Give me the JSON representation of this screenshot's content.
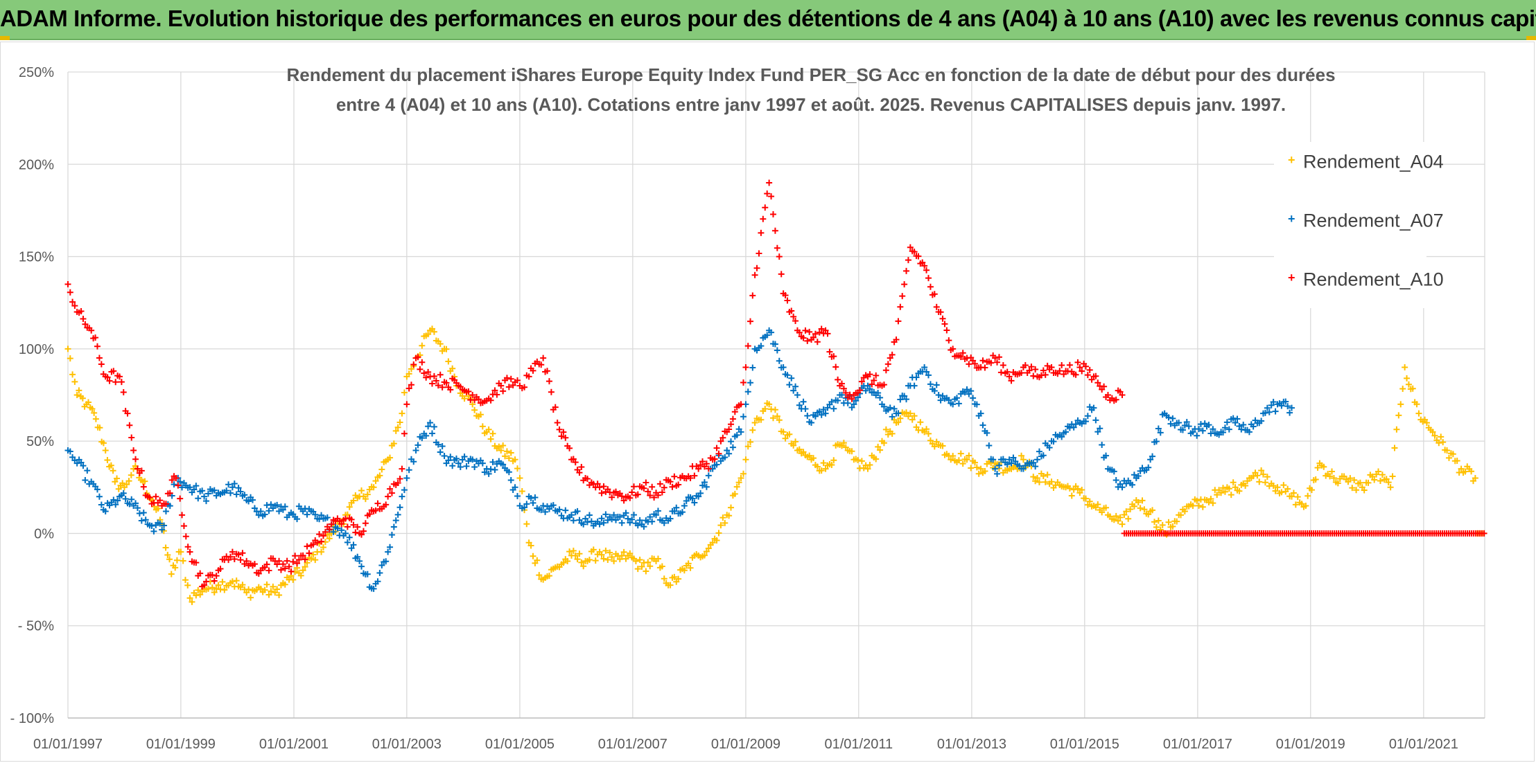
{
  "banner": {
    "title": "ADAM Informe. Evolution historique des performances en euros pour des détentions de 4 ans (A04) à 10 ans (A10) avec les revenus connus capitalisés"
  },
  "chart_data": {
    "type": "scatter",
    "title_lines": [
      "Rendement du placement iShares Europe Equity Index Fund PER_SG Acc en fonction de la date de début pour des durées",
      "entre 4 (A04) et 10 ans (A10). Cotations entre janv 1997 et août. 2025. Revenus CAPITALISES depuis janv. 1997."
    ],
    "xlabel": "",
    "ylabel": "",
    "x_range": [
      "1997-01-01",
      "2022-01-31"
    ],
    "ylim": [
      -100,
      250
    ],
    "y_ticks": [
      {
        "value": 250,
        "label": "250%"
      },
      {
        "value": 200,
        "label": "200%"
      },
      {
        "value": 150,
        "label": "150%"
      },
      {
        "value": 100,
        "label": "100%"
      },
      {
        "value": 50,
        "label": "50%"
      },
      {
        "value": 0,
        "label": "0%"
      },
      {
        "value": -50,
        "label": "- 50%"
      },
      {
        "value": -100,
        "label": "- 100%"
      }
    ],
    "x_ticks": [
      {
        "value": "1997-01-01",
        "label": "01/01/1997"
      },
      {
        "value": "1999-01-01",
        "label": "01/01/1999"
      },
      {
        "value": "2001-01-01",
        "label": "01/01/2001"
      },
      {
        "value": "2003-01-01",
        "label": "01/01/2003"
      },
      {
        "value": "2005-01-01",
        "label": "01/01/2005"
      },
      {
        "value": "2007-01-01",
        "label": "01/01/2007"
      },
      {
        "value": "2009-01-01",
        "label": "01/01/2009"
      },
      {
        "value": "2011-01-01",
        "label": "01/01/2011"
      },
      {
        "value": "2013-01-01",
        "label": "01/01/2013"
      },
      {
        "value": "2015-01-01",
        "label": "01/01/2015"
      },
      {
        "value": "2017-01-01",
        "label": "01/01/2017"
      },
      {
        "value": "2019-01-01",
        "label": "01/01/2019"
      },
      {
        "value": "2021-01-01",
        "label": "01/01/2021"
      }
    ],
    "grid": true,
    "marker": "+",
    "legend_position": "right",
    "series": [
      {
        "name": "Rendement_A04",
        "color": "#ffc000",
        "x": [
          "1997-01-01",
          "1997-03-01",
          "1997-05-01",
          "1997-07-01",
          "1997-09-01",
          "1997-11-01",
          "1998-01-01",
          "1998-03-01",
          "1998-05-01",
          "1998-07-01",
          "1998-09-01",
          "1998-11-01",
          "1999-01-01",
          "1999-03-01",
          "1999-06-01",
          "1999-09-01",
          "1999-12-01",
          "2000-03-01",
          "2000-06-01",
          "2000-09-01",
          "2000-12-01",
          "2001-03-01",
          "2001-06-01",
          "2001-09-01",
          "2001-12-01",
          "2002-03-01",
          "2002-06-01",
          "2002-09-01",
          "2002-12-01",
          "2003-01-01",
          "2003-03-01",
          "2003-06-01",
          "2003-09-01",
          "2003-12-01",
          "2004-03-01",
          "2004-06-01",
          "2004-09-01",
          "2004-12-01",
          "2005-01-01",
          "2005-03-01",
          "2005-06-01",
          "2005-09-01",
          "2005-12-01",
          "2006-03-01",
          "2006-06-01",
          "2006-09-01",
          "2006-12-01",
          "2007-03-01",
          "2007-06-01",
          "2007-09-01",
          "2007-12-01",
          "2008-03-01",
          "2008-06-01",
          "2008-09-01",
          "2008-12-01",
          "2009-01-01",
          "2009-03-01",
          "2009-06-01",
          "2009-09-01",
          "2009-12-01",
          "2010-03-01",
          "2010-06-01",
          "2010-09-01",
          "2010-12-01",
          "2011-03-01",
          "2011-06-01",
          "2011-09-01",
          "2011-12-01",
          "2012-03-01",
          "2012-06-01",
          "2012-09-01",
          "2012-12-01",
          "2013-03-01",
          "2013-06-01",
          "2013-09-01",
          "2013-12-01",
          "2014-03-01",
          "2014-06-01",
          "2014-09-01",
          "2014-12-01",
          "2015-03-01",
          "2015-06-01",
          "2015-09-01",
          "2015-12-01",
          "2016-03-01",
          "2016-06-01",
          "2016-09-01",
          "2016-12-01",
          "2017-03-01",
          "2017-06-01",
          "2017-09-01",
          "2017-12-01",
          "2018-03-01",
          "2018-06-01",
          "2018-09-01",
          "2018-12-01",
          "2019-03-01",
          "2019-06-01",
          "2019-09-01",
          "2019-12-01",
          "2020-03-01",
          "2020-06-01",
          "2020-09-01",
          "2020-12-01",
          "2021-03-01",
          "2021-06-01",
          "2021-09-01",
          "2021-12-01"
        ],
        "y": [
          100,
          75,
          70,
          62,
          45,
          28,
          25,
          35,
          28,
          18,
          5,
          -22,
          -10,
          -35,
          -30,
          -28,
          -26,
          -32,
          -30,
          -32,
          -25,
          -20,
          -10,
          0,
          10,
          20,
          25,
          40,
          65,
          85,
          95,
          110,
          100,
          80,
          70,
          55,
          45,
          40,
          30,
          -5,
          -25,
          -18,
          -12,
          -15,
          -10,
          -15,
          -12,
          -18,
          -15,
          -28,
          -20,
          -12,
          -5,
          10,
          30,
          40,
          60,
          70,
          55,
          45,
          40,
          35,
          48,
          40,
          35,
          50,
          60,
          65,
          55,
          48,
          42,
          40,
          35,
          38,
          35,
          40,
          30,
          28,
          25,
          22,
          15,
          10,
          5,
          18,
          12,
          0,
          10,
          15,
          18,
          22,
          25,
          30,
          32,
          25,
          20,
          15,
          38,
          30,
          28,
          25,
          32,
          25,
          90,
          65,
          55,
          45,
          35,
          30
        ]
      },
      {
        "name": "Rendement_A07",
        "color": "#0070c0",
        "x": [
          "1997-01-01",
          "1997-03-01",
          "1997-06-01",
          "1997-09-01",
          "1997-12-01",
          "1998-03-01",
          "1998-06-01",
          "1998-09-01",
          "1998-12-01",
          "1999-03-01",
          "1999-06-01",
          "1999-09-01",
          "1999-12-01",
          "2000-03-01",
          "2000-06-01",
          "2000-09-01",
          "2000-12-01",
          "2001-03-01",
          "2001-06-01",
          "2001-09-01",
          "2001-12-01",
          "2002-03-01",
          "2002-06-01",
          "2002-09-01",
          "2002-12-01",
          "2003-01-01",
          "2003-03-01",
          "2003-06-01",
          "2003-09-01",
          "2003-12-01",
          "2004-03-01",
          "2004-06-01",
          "2004-09-01",
          "2004-12-01",
          "2005-01-01",
          "2005-03-01",
          "2005-06-01",
          "2005-09-01",
          "2005-12-01",
          "2006-03-01",
          "2006-06-01",
          "2006-09-01",
          "2006-12-01",
          "2007-03-01",
          "2007-06-01",
          "2007-09-01",
          "2007-12-01",
          "2008-03-01",
          "2008-06-01",
          "2008-09-01",
          "2008-12-01",
          "2009-01-01",
          "2009-03-01",
          "2009-06-01",
          "2009-09-01",
          "2009-12-01",
          "2010-03-01",
          "2010-06-01",
          "2010-09-01",
          "2010-12-01",
          "2011-03-01",
          "2011-06-01",
          "2011-09-01",
          "2011-12-01",
          "2012-03-01",
          "2012-06-01",
          "2012-09-01",
          "2012-12-01",
          "2013-03-01",
          "2013-06-01",
          "2013-09-01",
          "2013-12-01",
          "2014-03-01",
          "2014-06-01",
          "2014-09-01",
          "2014-12-01",
          "2015-03-01",
          "2015-06-01",
          "2015-09-01",
          "2015-12-01",
          "2016-03-01",
          "2016-06-01",
          "2016-09-01",
          "2016-12-01",
          "2017-03-01",
          "2017-06-01",
          "2017-09-01",
          "2017-12-01",
          "2018-03-01",
          "2018-06-01",
          "2018-09-01"
        ],
        "y": [
          45,
          38,
          28,
          12,
          20,
          15,
          5,
          2,
          30,
          25,
          20,
          22,
          25,
          18,
          12,
          15,
          10,
          12,
          8,
          5,
          0,
          -15,
          -30,
          -10,
          20,
          30,
          45,
          60,
          42,
          38,
          40,
          35,
          38,
          25,
          15,
          20,
          15,
          12,
          10,
          8,
          5,
          10,
          8,
          5,
          10,
          8,
          15,
          20,
          35,
          45,
          55,
          70,
          100,
          110,
          90,
          75,
          60,
          65,
          75,
          70,
          80,
          70,
          65,
          80,
          90,
          75,
          70,
          78,
          65,
          35,
          40,
          35,
          40,
          50,
          55,
          60,
          68,
          35,
          25,
          30,
          40,
          65,
          60,
          55,
          58,
          55,
          60,
          55,
          65,
          70,
          68
        ]
      },
      {
        "name": "Rendement_A10",
        "color": "#ff0000",
        "x": [
          "1997-01-01",
          "1997-03-01",
          "1997-06-01",
          "1997-09-01",
          "1997-12-01",
          "1998-03-01",
          "1998-06-01",
          "1998-09-01",
          "1998-12-01",
          "1999-03-01",
          "1999-06-01",
          "1999-09-01",
          "1999-12-01",
          "2000-03-01",
          "2000-06-01",
          "2000-09-01",
          "2000-12-01",
          "2001-03-01",
          "2001-06-01",
          "2001-09-01",
          "2001-12-01",
          "2002-03-01",
          "2002-06-01",
          "2002-09-01",
          "2002-12-01",
          "2003-01-01",
          "2003-03-01",
          "2003-06-01",
          "2003-09-01",
          "2003-12-01",
          "2004-03-01",
          "2004-06-01",
          "2004-09-01",
          "2004-12-01",
          "2005-01-01",
          "2005-03-01",
          "2005-06-01",
          "2005-09-01",
          "2005-12-01",
          "2006-03-01",
          "2006-06-01",
          "2006-09-01",
          "2006-12-01",
          "2007-03-01",
          "2007-06-01",
          "2007-09-01",
          "2007-12-01",
          "2008-03-01",
          "2008-06-01",
          "2008-09-01",
          "2008-12-01",
          "2009-01-01",
          "2009-03-01",
          "2009-06-01",
          "2009-09-01",
          "2009-12-01",
          "2010-03-01",
          "2010-06-01",
          "2010-09-01",
          "2010-12-01",
          "2011-03-01",
          "2011-06-01",
          "2011-09-01",
          "2011-12-01",
          "2012-03-01",
          "2012-06-01",
          "2012-09-01",
          "2012-12-01",
          "2013-03-01",
          "2013-06-01",
          "2013-09-01",
          "2013-12-01",
          "2014-03-01",
          "2014-06-01",
          "2014-09-01",
          "2014-12-01",
          "2015-03-01",
          "2015-06-01",
          "2015-09-01"
        ],
        "y": [
          135,
          120,
          110,
          85,
          85,
          45,
          20,
          15,
          30,
          -10,
          -28,
          -20,
          -10,
          -15,
          -20,
          -15,
          -18,
          -12,
          -5,
          5,
          8,
          0,
          12,
          20,
          35,
          70,
          95,
          85,
          82,
          80,
          75,
          72,
          80,
          82,
          80,
          85,
          95,
          60,
          40,
          30,
          25,
          22,
          20,
          25,
          22,
          28,
          30,
          35,
          40,
          55,
          70,
          90,
          140,
          190,
          130,
          110,
          105,
          110,
          80,
          75,
          85,
          80,
          105,
          155,
          145,
          120,
          100,
          95,
          90,
          95,
          85,
          90,
          85,
          90,
          88,
          90,
          85,
          75,
          75
        ]
      }
    ]
  }
}
